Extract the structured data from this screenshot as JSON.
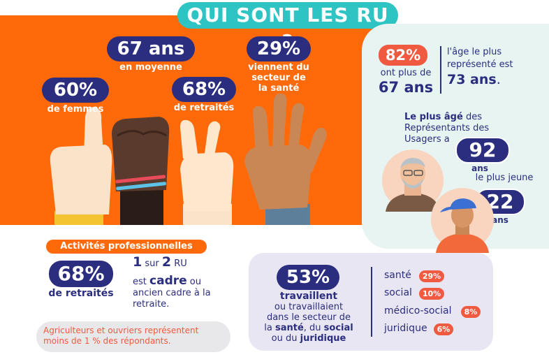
{
  "title": "QUI SONT LES RU ?",
  "stats_hands": {
    "women": {
      "value": "60%",
      "label": "de femmes"
    },
    "age": {
      "value": "67 ans",
      "label": "en moyenne"
    },
    "retired": {
      "value": "68%",
      "label": "de retraités"
    },
    "health": {
      "value": "29%",
      "label_l1": "viennent du",
      "label_l2": "secteur de",
      "label_l3": "la santé"
    }
  },
  "right_panel": {
    "pct": "82%",
    "pct_line1": "ont plus de",
    "pct_line2": "67 ans",
    "age_l1": "l'âge le plus",
    "age_l2": "représenté est",
    "age_value": "73 ans",
    "age_dot": ".",
    "oldest_bold": "Le plus âgé",
    "oldest_rest1": " des",
    "oldest_l2": "Représentants des",
    "oldest_l3": "Usagers a",
    "oldest_value": "92",
    "oldest_unit": "ans",
    "youngest_label": "le plus jeune",
    "youngest_value": "22",
    "youngest_unit": "ans"
  },
  "activities": {
    "header": "Activités professionnelles",
    "retired_value": "68%",
    "retired_label": "de retraités",
    "cadre_1": "1",
    "cadre_sur": " sur ",
    "cadre_2": "2",
    "cadre_ru": " RU",
    "cadre_est": "est ",
    "cadre_bold": "cadre",
    "cadre_ou": " ou",
    "cadre_l3": "ancien cadre à la",
    "cadre_l4": "retraite.",
    "note_l1": "Agriculteurs et ouvriers représentent",
    "note_l2": "moins de 1 % des répondants."
  },
  "sectors": {
    "value": "53%",
    "bold_label": "travaillent",
    "l2": "ou travaillaient",
    "l3": "dans le secteur de",
    "l4_a": "la ",
    "l4_b": "santé",
    "l4_c": ", du ",
    "l4_d": "social",
    "l5_a": "ou du ",
    "l5_b": "juridique",
    "items": [
      {
        "name": "santé",
        "pct": "29%"
      },
      {
        "name": "social",
        "pct": "10%"
      },
      {
        "name": "médico-social",
        "pct": "8%"
      },
      {
        "name": "juridique",
        "pct": "6%"
      }
    ]
  },
  "colors": {
    "orange": "#fe6a0a",
    "navy": "#2b2d7f",
    "teal": "#2ec4c4",
    "red": "#f05a40"
  }
}
